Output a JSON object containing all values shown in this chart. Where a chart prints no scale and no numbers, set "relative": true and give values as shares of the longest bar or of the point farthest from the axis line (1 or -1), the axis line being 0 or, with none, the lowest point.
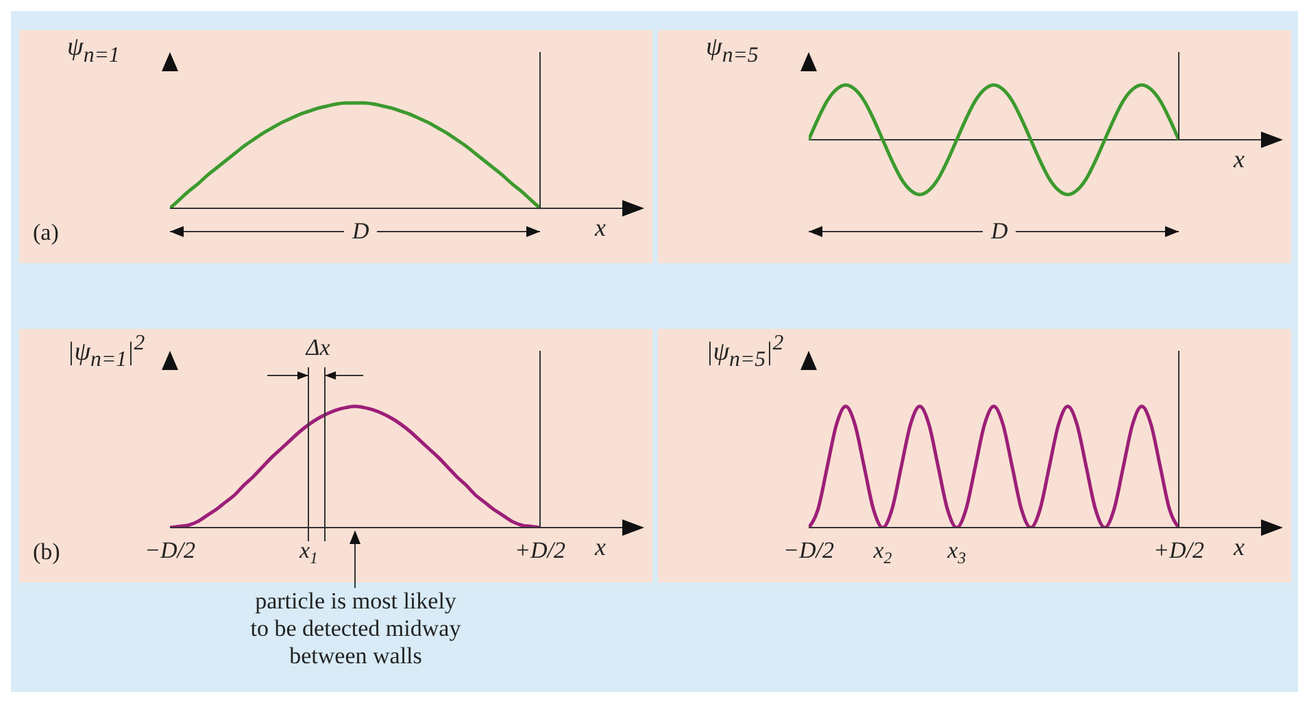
{
  "chart_data": [
    {
      "type": "line",
      "relative": true,
      "ylabel": "ψ$_{n=1}$",
      "xlabel": "x",
      "marker": "none",
      "line_style": "solid",
      "tick_labels": false,
      "categories": [
        null,
        null,
        null,
        null,
        null,
        null,
        null,
        null,
        null,
        null,
        null,
        null,
        null,
        null,
        null,
        null,
        null,
        null,
        null,
        null,
        null,
        null,
        null,
        null,
        null,
        null,
        null,
        null,
        null,
        null,
        null,
        null,
        null,
        null,
        null,
        null,
        null,
        null,
        null,
        null,
        null
      ],
      "series": [
        {
          "color": "#3c9a2e",
          "values": [
            0,
            0.08,
            0.16,
            0.23,
            0.31,
            0.38,
            0.45,
            0.52,
            0.59,
            0.65,
            0.71,
            0.76,
            0.81,
            0.85,
            0.89,
            0.92,
            0.95,
            0.97,
            0.99,
            1,
            1,
            1,
            0.99,
            0.97,
            0.95,
            0.92,
            0.89,
            0.85,
            0.81,
            0.76,
            0.71,
            0.65,
            0.59,
            0.52,
            0.45,
            0.38,
            0.31,
            0.23,
            0.16,
            0.08,
            0
          ]
        }
      ],
      "annotations": [
        "(a)",
        "D"
      ]
    },
    {
      "type": "line",
      "relative": true,
      "ylabel": "ψ$_{n=5}$",
      "xlabel": "x",
      "marker": "none",
      "line_style": "solid",
      "tick_labels": false,
      "categories": [
        null,
        null,
        null,
        null,
        null,
        null,
        null,
        null,
        null,
        null,
        null,
        null,
        null,
        null,
        null,
        null,
        null,
        null,
        null,
        null,
        null,
        null,
        null,
        null,
        null,
        null,
        null,
        null,
        null,
        null,
        null,
        null,
        null,
        null,
        null,
        null,
        null,
        null,
        null,
        null,
        null
      ],
      "series": [
        {
          "color": "#3c9a2e",
          "values": [
            0,
            0.38,
            0.71,
            0.92,
            1,
            0.92,
            0.71,
            0.38,
            0,
            -0.38,
            -0.71,
            -0.92,
            -1,
            -0.92,
            -0.71,
            -0.38,
            0,
            0.38,
            0.71,
            0.92,
            1,
            0.92,
            0.71,
            0.38,
            0,
            -0.38,
            -0.71,
            -0.92,
            -1,
            -0.92,
            -0.71,
            -0.38,
            0,
            0.38,
            0.71,
            0.92,
            1,
            0.92,
            0.71,
            0.38,
            0
          ]
        }
      ],
      "annotations": [
        "D"
      ]
    },
    {
      "type": "line",
      "relative": true,
      "ylabel": "|ψ$_{n=1}$|$^{2}$",
      "xlabel": "x",
      "marker": "none",
      "line_style": "solid",
      "tick_labels": "x",
      "categories": [
        "−D/2",
        null,
        null,
        null,
        null,
        null,
        null,
        null,
        null,
        null,
        null,
        null,
        null,
        null,
        null,
        "x$_{1}$",
        null,
        null,
        null,
        null,
        null,
        null,
        null,
        null,
        null,
        null,
        null,
        null,
        null,
        null,
        null,
        null,
        null,
        null,
        null,
        null,
        null,
        null,
        null,
        null,
        "+D/2"
      ],
      "series": [
        {
          "color": "#9c1f78",
          "values": [
            0,
            0.01,
            0.02,
            0.05,
            0.1,
            0.15,
            0.21,
            0.27,
            0.35,
            0.42,
            0.5,
            0.58,
            0.65,
            0.72,
            0.79,
            0.85,
            0.9,
            0.94,
            0.97,
            0.99,
            1,
            0.99,
            0.97,
            0.94,
            0.9,
            0.85,
            0.79,
            0.72,
            0.65,
            0.58,
            0.5,
            0.42,
            0.35,
            0.27,
            0.21,
            0.15,
            0.1,
            0.05,
            0.02,
            0.01,
            0
          ]
        }
      ],
      "annotations": [
        "(b)",
        "Δx",
        "particle is most likely to be detected midway between walls"
      ]
    },
    {
      "type": "line",
      "relative": true,
      "ylabel": "|ψ$_{n=5}$|$^{2}$",
      "xlabel": "x",
      "marker": "none",
      "line_style": "solid",
      "tick_labels": "x",
      "categories": [
        "−D/2",
        null,
        null,
        null,
        null,
        null,
        null,
        null,
        "x$_{2}$",
        null,
        null,
        null,
        null,
        null,
        null,
        null,
        "x$_{3}$",
        null,
        null,
        null,
        null,
        null,
        null,
        null,
        null,
        null,
        null,
        null,
        null,
        null,
        null,
        null,
        null,
        null,
        null,
        null,
        null,
        null,
        null,
        null,
        "+D/2"
      ],
      "series": [
        {
          "color": "#9c1f78",
          "values": [
            0,
            0.15,
            0.5,
            0.85,
            1,
            0.85,
            0.5,
            0.15,
            0,
            0.15,
            0.5,
            0.85,
            1,
            0.85,
            0.5,
            0.15,
            0,
            0.15,
            0.5,
            0.85,
            1,
            0.85,
            0.5,
            0.15,
            0,
            0.15,
            0.5,
            0.85,
            1,
            0.85,
            0.5,
            0.15,
            0,
            0.15,
            0.5,
            0.85,
            1,
            0.85,
            0.5,
            0.15,
            0
          ]
        }
      ]
    }
  ]
}
